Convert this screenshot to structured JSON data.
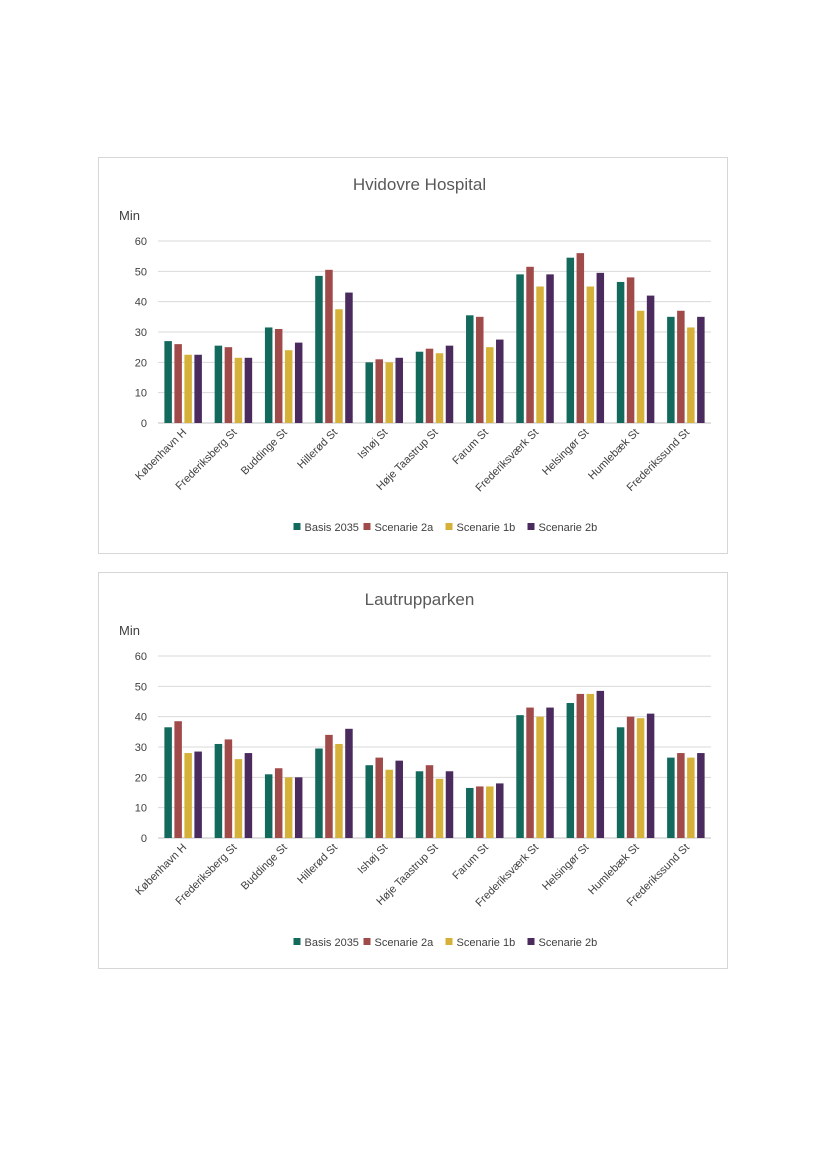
{
  "colors": {
    "Basis 2035": "#136a5c",
    "Scenarie 2a": "#a14a4a",
    "Scenarie 1b": "#d6b13a",
    "Scenarie 2b": "#4b2a5e"
  },
  "chart_data": [
    {
      "type": "bar",
      "title": "Hvidovre Hospital",
      "ylabel": "Min",
      "ylim": [
        0,
        60
      ],
      "yticks": [
        0,
        10,
        20,
        30,
        40,
        50,
        60
      ],
      "grid": true,
      "legend": "bottom",
      "categories": [
        "København H",
        "Frederiksberg St",
        "Buddinge St",
        "Hillerød St",
        "Ishøj St",
        "Høje Taastrup St",
        "Farum St",
        "Frederiksværk St",
        "Helsingør St",
        "Humlebæk St",
        "Frederikssund St"
      ],
      "series": [
        {
          "name": "Basis 2035",
          "values": [
            27,
            25.5,
            31.5,
            48.5,
            20,
            23.5,
            35.5,
            49,
            54.5,
            46.5,
            35
          ]
        },
        {
          "name": "Scenarie 2a",
          "values": [
            26,
            25,
            31,
            50.5,
            21,
            24.5,
            35,
            51.5,
            56,
            48,
            37
          ]
        },
        {
          "name": "Scenarie 1b",
          "values": [
            22.5,
            21.5,
            24,
            37.5,
            20,
            23,
            25,
            45,
            45,
            37,
            31.5
          ]
        },
        {
          "name": "Scenarie 2b",
          "values": [
            22.5,
            21.5,
            26.5,
            43,
            21.5,
            25.5,
            27.5,
            49,
            49.5,
            42,
            35
          ]
        }
      ]
    },
    {
      "type": "bar",
      "title": "Lautrupparken",
      "ylabel": "Min",
      "ylim": [
        0,
        60
      ],
      "yticks": [
        0,
        10,
        20,
        30,
        40,
        50,
        60
      ],
      "grid": true,
      "legend": "bottom",
      "categories": [
        "København H",
        "Frederiksberg St",
        "Buddinge St",
        "Hillerød St",
        "Ishøj St",
        "Høje Taastrup St",
        "Farum St",
        "Frederiksværk St",
        "Helsingør St",
        "Humlebæk St",
        "Frederikssund St"
      ],
      "series": [
        {
          "name": "Basis 2035",
          "values": [
            36.5,
            31,
            21,
            29.5,
            24,
            22,
            16.5,
            40.5,
            44.5,
            36.5,
            26.5
          ]
        },
        {
          "name": "Scenarie 2a",
          "values": [
            38.5,
            32.5,
            23,
            34,
            26.5,
            24,
            17,
            43,
            47.5,
            40,
            28
          ]
        },
        {
          "name": "Scenarie 1b",
          "values": [
            28,
            26,
            20,
            31,
            22.5,
            19.5,
            17,
            40,
            47.5,
            39.5,
            26.5
          ]
        },
        {
          "name": "Scenarie 2b",
          "values": [
            28.5,
            28,
            20,
            36,
            25.5,
            22,
            18,
            43,
            48.5,
            41,
            28
          ]
        }
      ]
    }
  ]
}
